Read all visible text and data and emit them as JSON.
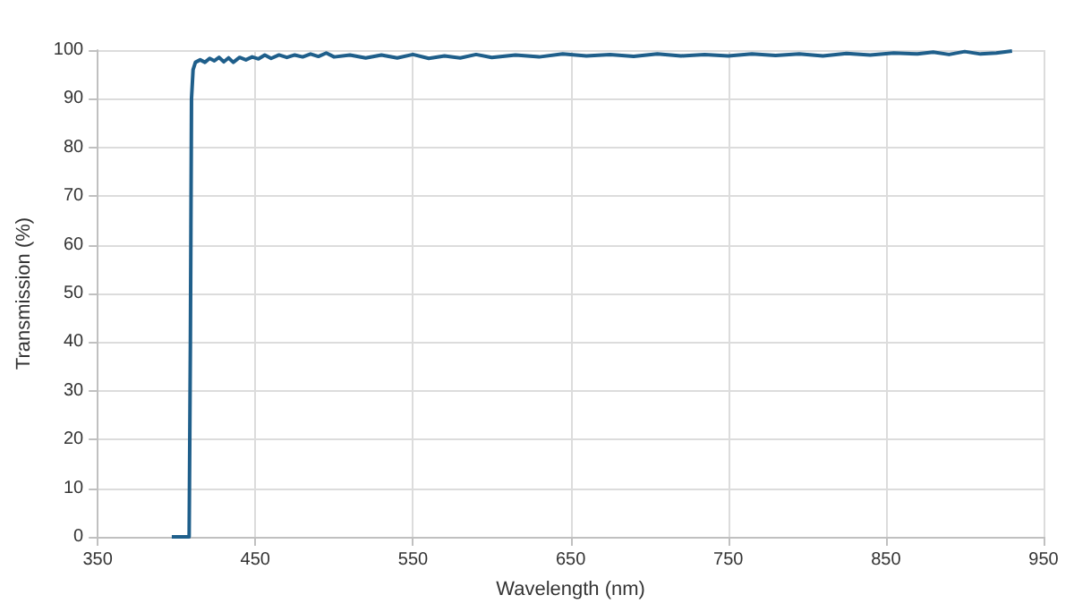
{
  "chart_data": {
    "type": "line",
    "xlabel": "Wavelength (nm)",
    "ylabel": "Transmission (%)",
    "x": [
      397,
      408,
      408.8,
      409.5,
      410.5,
      412,
      415,
      418,
      421,
      424,
      427,
      430,
      433,
      436,
      440,
      444,
      448,
      452,
      456,
      460,
      465,
      470,
      475,
      480,
      485,
      490,
      495,
      500,
      510,
      520,
      530,
      540,
      550,
      560,
      570,
      580,
      590,
      600,
      615,
      630,
      645,
      660,
      675,
      690,
      705,
      720,
      735,
      750,
      765,
      780,
      795,
      810,
      825,
      840,
      855,
      870,
      880,
      890,
      900,
      910,
      920,
      930
    ],
    "series": [
      {
        "color": "#1f5f8b",
        "values": [
          0,
          0,
          40,
          90,
          96,
          97.5,
          98,
          97.5,
          98.3,
          97.8,
          98.5,
          97.6,
          98.4,
          97.5,
          98.5,
          98,
          98.6,
          98.2,
          99,
          98.3,
          99,
          98.5,
          99,
          98.6,
          99.2,
          98.7,
          99.4,
          98.6,
          99,
          98.4,
          99,
          98.4,
          99.1,
          98.3,
          98.8,
          98.4,
          99.1,
          98.5,
          99,
          98.6,
          99.2,
          98.8,
          99.1,
          98.7,
          99.2,
          98.8,
          99.1,
          98.8,
          99.2,
          98.9,
          99.2,
          98.8,
          99.3,
          99,
          99.4,
          99.2,
          99.6,
          99.1,
          99.7,
          99.2,
          99.4,
          99.8
        ]
      }
    ],
    "xlim": [
      350,
      950
    ],
    "xticks": [
      350,
      450,
      550,
      650,
      750,
      850,
      950
    ],
    "ylim": [
      0,
      100
    ],
    "yticks": [
      0,
      10,
      20,
      30,
      40,
      50,
      60,
      70,
      80,
      90,
      100
    ],
    "grid": true,
    "marker": "none",
    "line_style": "solid"
  }
}
